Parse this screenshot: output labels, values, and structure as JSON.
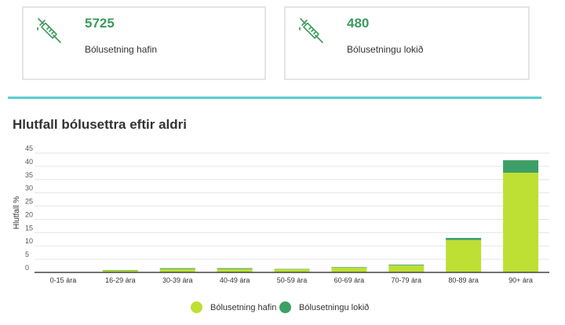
{
  "colors": {
    "started": "#bedf34",
    "completed": "#3e9f66",
    "accent": "#3c9a5c",
    "divider": "#59cfcf"
  },
  "cards": [
    {
      "icon": "syringe-icon",
      "value": "5725",
      "label": "Bólusetning hafin"
    },
    {
      "icon": "syringe-icon",
      "value": "480",
      "label": "Bólusetningu lokið"
    }
  ],
  "chart_title": "Hlutfall bólusettra eftir aldri",
  "chart_data": {
    "type": "bar",
    "stacked": true,
    "title": "Hlutfall bólusettra eftir aldri",
    "xlabel": "",
    "ylabel": "Hlutfall %",
    "ylim": [
      0,
      45
    ],
    "yticks": [
      0,
      5,
      10,
      15,
      20,
      25,
      30,
      35,
      40,
      45
    ],
    "grid": true,
    "legend_position": "bottom",
    "categories": [
      "0-15 ára",
      "16-29 ára",
      "30-39 ára",
      "40-49 ára",
      "50-59 ára",
      "60-69 ára",
      "70-79 ára",
      "80-89 ára",
      "90+ ára"
    ],
    "series": [
      {
        "name": "Bólusetning hafin",
        "values": [
          0,
          0.8,
          1.3,
          1.3,
          1.2,
          1.8,
          2.6,
          12.2,
          37.6
        ]
      },
      {
        "name": "Bólusetningu lokið",
        "values": [
          0,
          0.1,
          0.3,
          0.3,
          0.1,
          0.2,
          0.3,
          0.8,
          4.7
        ]
      }
    ]
  }
}
